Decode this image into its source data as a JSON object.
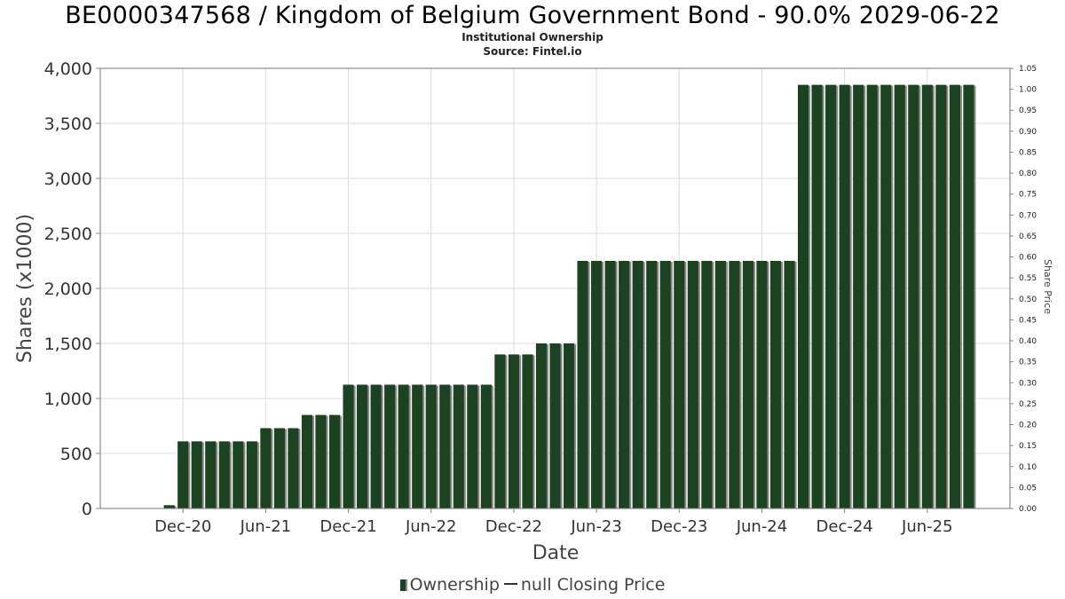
{
  "title": "BE0000347568 / Kingdom of Belgium Government Bond - 90.0% 2029-06-22",
  "subtitle1": "Institutional Ownership",
  "subtitle2": "Source: Fintel.io",
  "legend": {
    "ownership": "Ownership",
    "price": "null Closing Price"
  },
  "colors": {
    "bar": "#1b4321",
    "bar_shadow": "#8a8a8a",
    "grid": "#dddddd"
  },
  "chart_data": {
    "type": "bar",
    "title": "BE0000347568 / Kingdom of Belgium Government Bond - 90.0% 2029-06-22",
    "xlabel": "Date",
    "ylabel": "Shares (x1000)",
    "y2label": "Share Price",
    "ylim": [
      0,
      4000
    ],
    "y2lim": [
      0,
      1.05
    ],
    "grid": true,
    "legend_position": "bottom",
    "y_ticks": [
      "0",
      "500",
      "1,000",
      "1,500",
      "2,000",
      "2,500",
      "3,000",
      "3,500",
      "4,000"
    ],
    "y2_ticks": [
      "0.00",
      "0.05",
      "0.10",
      "0.15",
      "0.20",
      "0.25",
      "0.30",
      "0.35",
      "0.40",
      "0.45",
      "0.50",
      "0.55",
      "0.60",
      "0.65",
      "0.70",
      "0.75",
      "0.80",
      "0.85",
      "0.90",
      "0.95",
      "1.00",
      "1.05"
    ],
    "x_ticks": [
      "Dec-20",
      "Jun-21",
      "Dec-21",
      "Jun-22",
      "Dec-22",
      "Jun-23",
      "Dec-23",
      "Jun-24",
      "Dec-24",
      "Jun-25"
    ],
    "x_tick_months": [
      "2020-12",
      "2021-06",
      "2021-12",
      "2022-06",
      "2022-12",
      "2023-06",
      "2023-12",
      "2024-06",
      "2024-12",
      "2025-06"
    ],
    "x_range": [
      "2020-06",
      "2025-12"
    ],
    "series": [
      {
        "name": "Ownership",
        "points": [
          {
            "x": "2020-11",
            "y": 30
          },
          {
            "x": "2020-12",
            "y": 610
          },
          {
            "x": "2021-01",
            "y": 610
          },
          {
            "x": "2021-02",
            "y": 610
          },
          {
            "x": "2021-03",
            "y": 610
          },
          {
            "x": "2021-04",
            "y": 610
          },
          {
            "x": "2021-05",
            "y": 610
          },
          {
            "x": "2021-06",
            "y": 730
          },
          {
            "x": "2021-07",
            "y": 730
          },
          {
            "x": "2021-08",
            "y": 730
          },
          {
            "x": "2021-09",
            "y": 850
          },
          {
            "x": "2021-10",
            "y": 850
          },
          {
            "x": "2021-11",
            "y": 850
          },
          {
            "x": "2021-12",
            "y": 1125
          },
          {
            "x": "2022-01",
            "y": 1125
          },
          {
            "x": "2022-02",
            "y": 1125
          },
          {
            "x": "2022-03",
            "y": 1125
          },
          {
            "x": "2022-04",
            "y": 1125
          },
          {
            "x": "2022-05",
            "y": 1125
          },
          {
            "x": "2022-06",
            "y": 1125
          },
          {
            "x": "2022-07",
            "y": 1125
          },
          {
            "x": "2022-08",
            "y": 1125
          },
          {
            "x": "2022-09",
            "y": 1125
          },
          {
            "x": "2022-10",
            "y": 1125
          },
          {
            "x": "2022-11",
            "y": 1400
          },
          {
            "x": "2022-12",
            "y": 1400
          },
          {
            "x": "2023-01",
            "y": 1400
          },
          {
            "x": "2023-02",
            "y": 1500
          },
          {
            "x": "2023-03",
            "y": 1500
          },
          {
            "x": "2023-04",
            "y": 1500
          },
          {
            "x": "2023-05",
            "y": 2250
          },
          {
            "x": "2023-06",
            "y": 2250
          },
          {
            "x": "2023-07",
            "y": 2250
          },
          {
            "x": "2023-08",
            "y": 2250
          },
          {
            "x": "2023-09",
            "y": 2250
          },
          {
            "x": "2023-10",
            "y": 2250
          },
          {
            "x": "2023-11",
            "y": 2250
          },
          {
            "x": "2023-12",
            "y": 2250
          },
          {
            "x": "2024-01",
            "y": 2250
          },
          {
            "x": "2024-02",
            "y": 2250
          },
          {
            "x": "2024-03",
            "y": 2250
          },
          {
            "x": "2024-04",
            "y": 2250
          },
          {
            "x": "2024-05",
            "y": 2250
          },
          {
            "x": "2024-06",
            "y": 2250
          },
          {
            "x": "2024-07",
            "y": 2250
          },
          {
            "x": "2024-08",
            "y": 2250
          },
          {
            "x": "2024-09",
            "y": 3850
          },
          {
            "x": "2024-10",
            "y": 3850
          },
          {
            "x": "2024-11",
            "y": 3850
          },
          {
            "x": "2024-12",
            "y": 3850
          },
          {
            "x": "2025-01",
            "y": 3850
          },
          {
            "x": "2025-02",
            "y": 3850
          },
          {
            "x": "2025-03",
            "y": 3850
          },
          {
            "x": "2025-04",
            "y": 3850
          },
          {
            "x": "2025-05",
            "y": 3850
          },
          {
            "x": "2025-06",
            "y": 3850
          },
          {
            "x": "2025-07",
            "y": 3850
          },
          {
            "x": "2025-08",
            "y": 3850
          },
          {
            "x": "2025-09",
            "y": 3850
          }
        ]
      }
    ]
  }
}
